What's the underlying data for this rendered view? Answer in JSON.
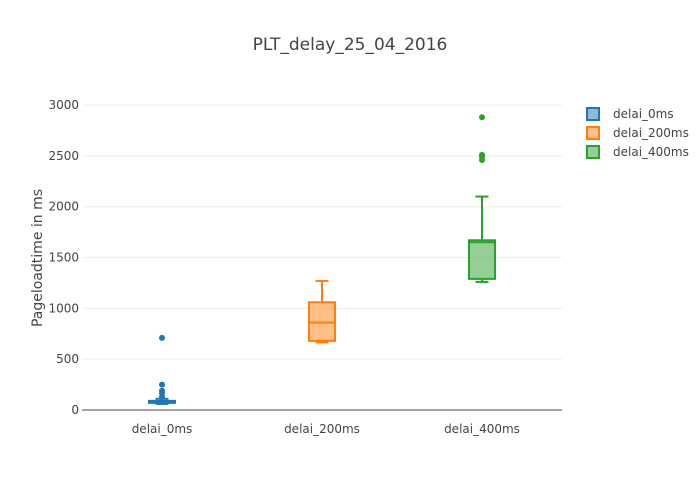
{
  "chart_data": {
    "type": "box",
    "title": "PLT_delay_25_04_2016",
    "xlabel": "",
    "ylabel": "Pageloadtime in ms",
    "ylim": [
      0,
      3050
    ],
    "yticks": [
      0,
      500,
      1000,
      1500,
      2000,
      2500,
      3000
    ],
    "grid": true,
    "legend_position": "top-right",
    "categories": [
      "delai_0ms",
      "delai_200ms",
      "delai_400ms"
    ],
    "series": [
      {
        "name": "delai_0ms",
        "color": "#1f77b4",
        "min": 60,
        "q1": 70,
        "median": 80,
        "q3": 90,
        "max": 110,
        "outliers": [
          130,
          170,
          190,
          250,
          710
        ]
      },
      {
        "name": "delai_200ms",
        "color": "#ff7f0e",
        "min": 665,
        "q1": 680,
        "median": 860,
        "q3": 1060,
        "max": 1270,
        "outliers": []
      },
      {
        "name": "delai_400ms",
        "color": "#2ca02c",
        "min": 1260,
        "q1": 1290,
        "median": 1650,
        "q3": 1670,
        "max": 2100,
        "outliers": [
          2460,
          2490,
          2510,
          2880
        ]
      }
    ]
  }
}
